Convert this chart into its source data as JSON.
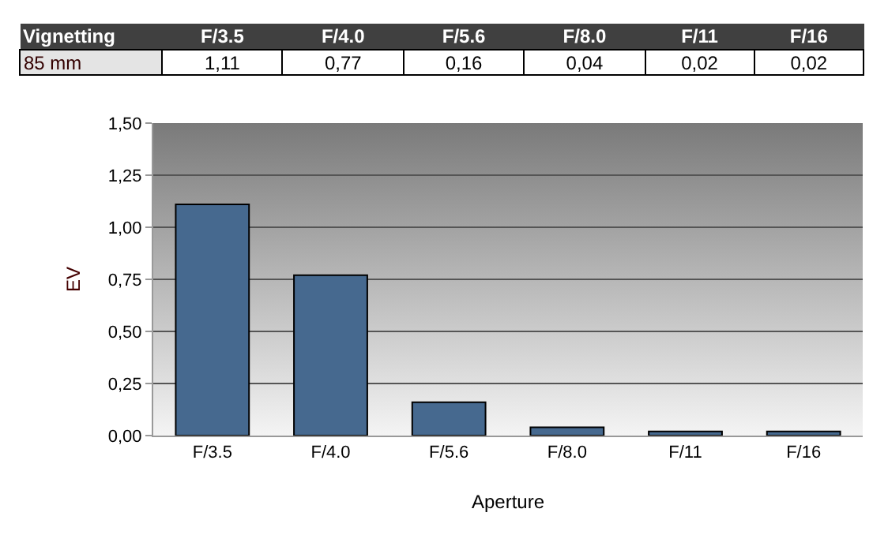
{
  "chart_data": {
    "type": "bar",
    "title": "Vignetting",
    "xlabel": "Aperture",
    "ylabel": "EV",
    "categories": [
      "F/3.5",
      "F/4.0",
      "F/5.6",
      "F/8.0",
      "F/11",
      "F/16"
    ],
    "series": [
      {
        "name": "85 mm",
        "color": "#46698f",
        "values": [
          1.11,
          0.77,
          0.16,
          0.04,
          0.02,
          0.02
        ],
        "value_labels": [
          "1,11",
          "0,77",
          "0,16",
          "0,04",
          "0,02",
          "0,02"
        ]
      }
    ],
    "ylim": [
      0,
      1.5
    ],
    "yticks": [
      {
        "value": 0,
        "label": "0,00"
      },
      {
        "value": 0.25,
        "label": "0,25"
      },
      {
        "value": 0.5,
        "label": "0,50"
      },
      {
        "value": 0.75,
        "label": "0,75"
      },
      {
        "value": 1,
        "label": "1,00"
      },
      {
        "value": 1.25,
        "label": "1,25"
      },
      {
        "value": 1.5,
        "label": "1,50"
      }
    ],
    "grid": "y",
    "legend": false
  }
}
